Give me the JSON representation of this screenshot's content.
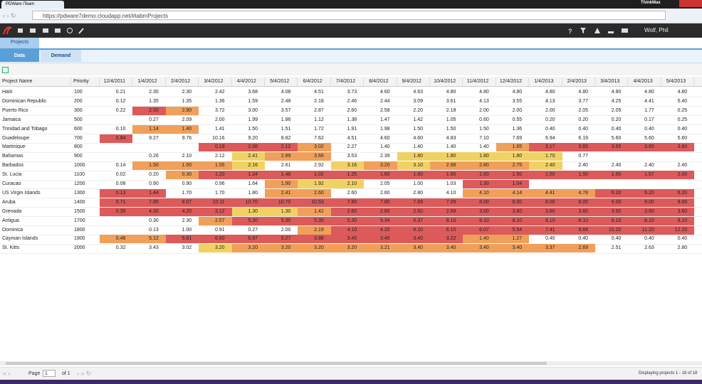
{
  "browser": {
    "tab_title": "PDWare iTeam",
    "url": "https://pdware7demo.cloudapp.net/#tabmProjects",
    "profile": "ThinkMax"
  },
  "app": {
    "user": "Wolf, Phil",
    "main_tab": "Projects",
    "sub_tabs": [
      "Data",
      "Demand"
    ]
  },
  "table": {
    "columns": [
      "Project Name",
      "Priority",
      "12/4/2011",
      "1/4/2012",
      "2/4/2012",
      "3/4/2012",
      "4/4/2012",
      "5/4/2012",
      "6/4/2012",
      "7/4/2012",
      "8/4/2012",
      "9/4/2012",
      "10/4/2012",
      "11/4/2012",
      "12/4/2012",
      "1/4/2013",
      "2/4/2013",
      "3/4/2013",
      "4/4/2013",
      "5/4/2013"
    ],
    "rows": [
      {
        "name": "Haiti",
        "priority": "100",
        "values": [
          "0.21",
          "2.30",
          "2.30",
          "2.42",
          "3.68",
          "4.08",
          "4.51",
          "3.73",
          "4.60",
          "4.63",
          "4.80",
          "4.80",
          "4.80",
          "4.80",
          "4.80",
          "4.80",
          "4.80",
          "4.80"
        ],
        "colors": [
          null,
          null,
          null,
          null,
          null,
          null,
          null,
          null,
          null,
          null,
          null,
          null,
          null,
          null,
          null,
          null,
          null,
          null
        ]
      },
      {
        "name": "Dominican Republic",
        "priority": "200",
        "values": [
          "0.12",
          "1.35",
          "1.35",
          "1.36",
          "1.59",
          "2.48",
          "2.18",
          "2.46",
          "2.44",
          "3.09",
          "3.61",
          "4.13",
          "3.55",
          "4.13",
          "3.77",
          "4.25",
          "4.41",
          "5.40"
        ],
        "colors": [
          null,
          null,
          null,
          null,
          null,
          null,
          null,
          null,
          null,
          null,
          null,
          null,
          null,
          null,
          null,
          null,
          null,
          null
        ]
      },
      {
        "name": "Puerto Rico",
        "priority": "300",
        "values": [
          "0.22",
          "2.50",
          "2.90",
          "3.72",
          "3.00",
          "3.57",
          "2.87",
          "2.60",
          "2.58",
          "2.20",
          "2.18",
          "2.00",
          "2.00",
          "2.00",
          "2.05",
          "2.05",
          "1.77",
          "0.25"
        ],
        "colors": [
          null,
          "#dc5a5a",
          "#f0a05a",
          null,
          null,
          null,
          null,
          null,
          null,
          null,
          null,
          null,
          null,
          null,
          null,
          null,
          null,
          null
        ]
      },
      {
        "name": "Jamaica",
        "priority": "500",
        "values": [
          null,
          "0.27",
          "2.09",
          "2.00",
          "1.99",
          "1.86",
          "1.12",
          "1.38",
          "1.47",
          "1.42",
          "1.05",
          "0.60",
          "0.55",
          "0.20",
          "0.20",
          "0.20",
          "0.17",
          "0.25"
        ],
        "colors": [
          null,
          null,
          null,
          null,
          null,
          null,
          null,
          null,
          null,
          null,
          null,
          null,
          null,
          null,
          null,
          null,
          null,
          null
        ]
      },
      {
        "name": "Trinidad and Tobago",
        "priority": "600",
        "values": [
          "0.10",
          "1.14",
          "1.40",
          "1.41",
          "1.50",
          "1.51",
          "1.72",
          "1.91",
          "1.98",
          "1.50",
          "1.50",
          "1.50",
          "1.36",
          "0.40",
          "0.40",
          "0.40",
          "0.40",
          "0.40"
        ],
        "colors": [
          null,
          "#f0a05a",
          "#f0a05a",
          null,
          null,
          null,
          null,
          null,
          null,
          null,
          null,
          null,
          null,
          null,
          null,
          null,
          null,
          null
        ]
      },
      {
        "name": "Guadeloupe",
        "priority": "700",
        "values": [
          "0.84",
          "9.27",
          "9.76",
          "10.16",
          "9.20",
          "8.82",
          "7.62",
          "4.51",
          "4.60",
          "4.60",
          "4.83",
          "7.10",
          "7.69",
          "6.94",
          "6.19",
          "5.60",
          "5.60",
          "5.60"
        ],
        "colors": [
          "#dc5a5a",
          null,
          null,
          null,
          null,
          null,
          null,
          null,
          null,
          null,
          null,
          null,
          null,
          null,
          null,
          null,
          null,
          null
        ]
      },
      {
        "name": "Martinique",
        "priority": "800",
        "values": [
          null,
          null,
          null,
          "0.19",
          "2.08",
          "2.12",
          "3.02",
          "2.27",
          "1.40",
          "1.40",
          "1.40",
          "1.40",
          "1.65",
          "3.17",
          "3.65",
          "3.65",
          "3.65",
          "3.60"
        ],
        "colors": [
          null,
          null,
          null,
          "#dc5a5a",
          "#dc5a5a",
          "#dc5a5a",
          "#f0a05a",
          null,
          null,
          null,
          null,
          null,
          "#f0a05a",
          "#dc5a5a",
          "#dc5a5a",
          "#dc5a5a",
          "#dc5a5a",
          "#dc5a5a"
        ]
      },
      {
        "name": "Bahamas",
        "priority": "900",
        "values": [
          null,
          "0.26",
          "2.10",
          "2.12",
          "2.41",
          "2.89",
          "3.66",
          "3.53",
          "2.39",
          "1.80",
          "1.80",
          "1.80",
          "1.80",
          "1.70",
          "0.77",
          null,
          null,
          null
        ],
        "colors": [
          null,
          null,
          null,
          null,
          "#f0d264",
          "#f0a05a",
          "#f0a05a",
          null,
          null,
          "#f0d264",
          "#f0d264",
          "#f0d264",
          "#f0d264",
          "#f0d264",
          null,
          null,
          null,
          null
        ]
      },
      {
        "name": "Barbados",
        "priority": "1000",
        "values": [
          "0.14",
          "1.50",
          "1.50",
          "1.55",
          "2.16",
          "2.61",
          "2.92",
          "3.16",
          "3.20",
          "3.10",
          "2.98",
          "2.80",
          "2.75",
          "2.40",
          "2.40",
          "2.40",
          "2.40",
          "2.40"
        ],
        "colors": [
          null,
          "#f0a05a",
          "#f0a05a",
          "#f0a05a",
          "#f0d264",
          null,
          null,
          "#f0d264",
          "#f0a05a",
          "#f0d264",
          "#f0a05a",
          "#f0a05a",
          "#f0a05a",
          "#f0d264",
          null,
          null,
          null,
          null
        ]
      },
      {
        "name": "St. Lucia",
        "priority": "1100",
        "values": [
          "0.02",
          "0.20",
          "0.30",
          "1.20",
          "1.24",
          "1.48",
          "1.02",
          "1.25",
          "1.60",
          "1.60",
          "1.60",
          "1.60",
          "1.50",
          "1.50",
          "1.50",
          "1.50",
          "1.57",
          "2.00"
        ],
        "colors": [
          null,
          null,
          "#f0a05a",
          "#dc5a5a",
          "#dc5a5a",
          "#dc5a5a",
          "#dc5a5a",
          "#dc5a5a",
          "#dc5a5a",
          "#dc5a5a",
          "#dc5a5a",
          "#dc5a5a",
          "#dc5a5a",
          "#dc5a5a",
          "#dc5a5a",
          "#dc5a5a",
          "#dc5a5a",
          "#dc5a5a"
        ]
      },
      {
        "name": "Curacao",
        "priority": "1200",
        "values": [
          "0.08",
          "0.90",
          "0.90",
          "0.96",
          "1.64",
          "1.90",
          "1.92",
          "2.10",
          "2.05",
          "1.00",
          "1.03",
          "1.30",
          "1.04",
          null,
          null,
          null,
          null,
          null
        ],
        "colors": [
          null,
          null,
          null,
          null,
          null,
          "#f0a05a",
          "#f0d264",
          "#f0d264",
          null,
          null,
          null,
          "#dc5a5a",
          "#dc5a5a",
          null,
          null,
          null,
          null,
          null
        ]
      },
      {
        "name": "US Virgin Islands",
        "priority": "1300",
        "values": [
          "0.13",
          "1.44",
          "1.70",
          "1.70",
          "1.80",
          "2.41",
          "2.60",
          "2.60",
          "2.60",
          "2.80",
          "4.10",
          "4.10",
          "4.14",
          "4.41",
          "4.78",
          "6.20",
          "6.20",
          "6.20"
        ],
        "colors": [
          "#dc5a5a",
          "#dc5a5a",
          null,
          null,
          null,
          "#f0a05a",
          "#f0a05a",
          null,
          null,
          null,
          null,
          "#f0a05a",
          "#f0a05a",
          "#f0a05a",
          "#f0a05a",
          "#dc5a5a",
          "#dc5a5a",
          "#dc5a5a"
        ]
      },
      {
        "name": "Aruba",
        "priority": "1400",
        "values": [
          "0.71",
          "7.85",
          "8.07",
          "10.11",
          "10.70",
          "10.70",
          "10.53",
          "7.80",
          "7.80",
          "7.69",
          "7.09",
          "8.00",
          "8.00",
          "8.00",
          "8.05",
          "9.00",
          "9.00",
          "9.00"
        ],
        "colors": [
          "#dc5a5a",
          "#dc5a5a",
          "#dc5a5a",
          "#dc5a5a",
          "#dc5a5a",
          "#dc5a5a",
          "#dc5a5a",
          "#dc5a5a",
          "#dc5a5a",
          "#dc5a5a",
          "#dc5a5a",
          "#dc5a5a",
          "#dc5a5a",
          "#dc5a5a",
          "#dc5a5a",
          "#dc5a5a",
          "#dc5a5a",
          "#dc5a5a"
        ]
      },
      {
        "name": "Grenada",
        "priority": "1500",
        "values": [
          "0.39",
          "4.30",
          "4.20",
          "3.12",
          "1.30",
          "1.30",
          "1.42",
          "2.60",
          "2.60",
          "2.60",
          "2.69",
          "3.60",
          "3.60",
          "3.60",
          "3.60",
          "3.60",
          "3.60",
          "3.60"
        ],
        "colors": [
          "#dc5a5a",
          "#dc5a5a",
          "#dc5a5a",
          "#dc5a5a",
          "#f0d264",
          "#f0d264",
          "#f0a05a",
          "#dc5a5a",
          "#dc5a5a",
          "#dc5a5a",
          "#dc5a5a",
          "#dc5a5a",
          "#dc5a5a",
          "#dc5a5a",
          "#dc5a5a",
          "#dc5a5a",
          "#dc5a5a",
          "#dc5a5a"
        ]
      },
      {
        "name": "Antigua",
        "priority": "1700",
        "values": [
          null,
          "0.30",
          "2.30",
          "2.57",
          "5.30",
          "5.30",
          "5.30",
          "5.30",
          "5.34",
          "6.37",
          "8.10",
          "8.10",
          "8.10",
          "8.10",
          "8.10",
          "8.10",
          "8.10",
          "8.10"
        ],
        "colors": [
          null,
          null,
          null,
          "#f0a05a",
          "#dc5a5a",
          "#dc5a5a",
          "#dc5a5a",
          "#dc5a5a",
          "#dc5a5a",
          "#dc5a5a",
          "#dc5a5a",
          "#dc5a5a",
          "#dc5a5a",
          "#dc5a5a",
          "#dc5a5a",
          "#dc5a5a",
          "#dc5a5a",
          "#dc5a5a"
        ]
      },
      {
        "name": "Dominica",
        "priority": "1800",
        "values": [
          null,
          "0.13",
          "1.00",
          "0.91",
          "0.27",
          "2.00",
          "2.19",
          "4.10",
          "4.20",
          "6.10",
          "6.10",
          "6.07",
          "5.54",
          "7.41",
          "9.68",
          "10.20",
          "11.20",
          "12.20"
        ],
        "colors": [
          null,
          null,
          null,
          null,
          null,
          null,
          "#f0a05a",
          "#dc5a5a",
          "#dc5a5a",
          "#dc5a5a",
          "#dc5a5a",
          "#dc5a5a",
          "#dc5a5a",
          "#dc5a5a",
          "#dc5a5a",
          "#dc5a5a",
          "#dc5a5a",
          "#dc5a5a"
        ]
      },
      {
        "name": "Cayman Islands",
        "priority": "1900",
        "values": [
          "0.46",
          "5.12",
          "5.81",
          "6.60",
          "6.97",
          "5.27",
          "3.88",
          "3.40",
          "3.40",
          "3.40",
          "3.22",
          "1.40",
          "1.27",
          "0.40",
          "0.40",
          "0.40",
          "0.40",
          "0.40"
        ],
        "colors": [
          "#f0a05a",
          "#f0a05a",
          "#dc5a5a",
          "#dc5a5a",
          "#dc5a5a",
          "#dc5a5a",
          "#dc5a5a",
          "#dc5a5a",
          "#dc5a5a",
          "#dc5a5a",
          "#dc5a5a",
          "#f0a05a",
          "#f0a05a",
          null,
          null,
          null,
          null,
          null
        ]
      },
      {
        "name": "St. Kitts",
        "priority": "2000",
        "values": [
          "0.32",
          "3.43",
          "3.02",
          "3.20",
          "3.20",
          "3.20",
          "3.20",
          "3.20",
          "3.21",
          "3.40",
          "3.40",
          "3.40",
          "3.40",
          "3.37",
          "2.69",
          "2.51",
          "2.63",
          "2.80"
        ],
        "colors": [
          null,
          null,
          null,
          "#f0d264",
          "#f0a05a",
          "#f0a05a",
          "#f0a05a",
          "#f0a05a",
          "#f0a05a",
          "#f0a05a",
          "#f0a05a",
          "#f0a05a",
          "#f0a05a",
          "#f0a05a",
          "#f0a05a",
          null,
          null,
          null
        ]
      }
    ]
  },
  "pager": {
    "page_label": "Page",
    "page": "1",
    "of": "of 1",
    "status": "Displaying projects 1 - 18 of 18"
  }
}
